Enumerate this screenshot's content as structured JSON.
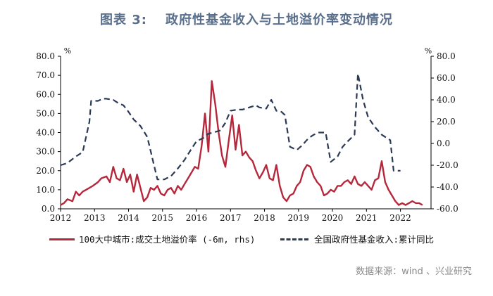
{
  "title": {
    "label": "图表 3:",
    "text": "政府性基金收入与土地溢价率变动情况"
  },
  "source": "数据来源：wind 、兴业研究",
  "colors": {
    "land_premium": "#b5283c",
    "fund_income": "#2b3a55",
    "title": "#5a6f8c"
  },
  "chart_data": {
    "type": "line",
    "left_axis": {
      "unit": "%",
      "ylim": [
        0,
        80
      ],
      "ticks": [
        "0.0",
        "10.0",
        "20.0",
        "30.0",
        "40.0",
        "50.0",
        "60.0",
        "70.0",
        "80.0"
      ]
    },
    "right_axis": {
      "unit": "%",
      "ylim": [
        -60,
        80
      ],
      "ticks": [
        "-60.0",
        "-40.0",
        "-20.0",
        "0.0",
        "20.0",
        "40.0",
        "60.0",
        "80.0"
      ]
    },
    "x_axis": {
      "range": [
        2012.0,
        2022.9
      ],
      "ticks": [
        "2012",
        "2013",
        "2014",
        "2015",
        "2016",
        "2017",
        "2018",
        "2019",
        "2020",
        "2021",
        "2022"
      ]
    },
    "grid": false,
    "legend_position": "bottom",
    "series": [
      {
        "name": "100大中城市:成交土地溢价率 (-6m, rhs)",
        "axis": "left",
        "style": "solid",
        "x": [
          2012.0,
          2012.1,
          2012.2,
          2012.35,
          2012.45,
          2012.55,
          2012.65,
          2012.75,
          2012.85,
          2012.95,
          2013.1,
          2013.2,
          2013.35,
          2013.45,
          2013.55,
          2013.65,
          2013.75,
          2013.85,
          2013.95,
          2014.05,
          2014.15,
          2014.25,
          2014.35,
          2014.45,
          2014.55,
          2014.65,
          2014.75,
          2014.85,
          2014.95,
          2015.05,
          2015.15,
          2015.25,
          2015.35,
          2015.45,
          2015.55,
          2015.65,
          2015.75,
          2015.85,
          2015.95,
          2016.05,
          2016.15,
          2016.25,
          2016.35,
          2016.45,
          2016.55,
          2016.65,
          2016.75,
          2016.85,
          2016.95,
          2017.05,
          2017.15,
          2017.25,
          2017.35,
          2017.45,
          2017.55,
          2017.65,
          2017.75,
          2017.85,
          2017.95,
          2018.05,
          2018.15,
          2018.25,
          2018.35,
          2018.45,
          2018.55,
          2018.65,
          2018.75,
          2018.85,
          2018.95,
          2019.05,
          2019.15,
          2019.25,
          2019.35,
          2019.45,
          2019.55,
          2019.65,
          2019.75,
          2019.85,
          2019.95,
          2020.05,
          2020.15,
          2020.25,
          2020.35,
          2020.45,
          2020.55,
          2020.65,
          2020.75,
          2020.85,
          2020.95,
          2021.05,
          2021.15,
          2021.25,
          2021.35,
          2021.45,
          2021.55,
          2021.65,
          2021.75,
          2021.85,
          2021.95,
          2022.05,
          2022.15,
          2022.25,
          2022.35,
          2022.45,
          2022.55,
          2022.65
        ],
        "values": [
          2,
          3,
          5,
          4,
          9,
          7,
          9,
          10,
          11,
          12,
          14,
          16,
          17,
          14,
          22,
          16,
          15,
          21,
          14,
          18,
          9,
          18,
          11,
          4,
          6,
          11,
          10,
          12,
          8,
          7,
          10,
          11,
          8,
          12,
          10,
          13,
          16,
          19,
          22,
          21,
          33,
          50,
          30,
          67,
          55,
          40,
          28,
          22,
          36,
          49,
          31,
          44,
          28,
          30,
          27,
          25,
          20,
          16,
          19,
          23,
          16,
          15,
          23,
          12,
          6,
          4,
          7,
          8,
          12,
          14,
          20,
          23,
          22,
          17,
          14,
          12,
          7,
          8,
          10,
          9,
          12,
          12,
          14,
          15,
          13,
          17,
          13,
          12,
          14,
          12,
          10,
          15,
          16,
          25,
          14,
          10,
          7,
          4,
          2,
          3,
          2,
          3,
          4,
          3,
          3,
          2
        ]
      },
      {
        "name": "全国政府性基金收入:累计同比",
        "axis": "right",
        "style": "dashed",
        "x": [
          2012.0,
          2012.2,
          2012.45,
          2012.65,
          2012.85,
          2012.9,
          2013.1,
          2013.25,
          2013.35,
          2013.55,
          2013.7,
          2013.85,
          2014.0,
          2014.15,
          2014.35,
          2014.55,
          2014.75,
          2014.85,
          2015.05,
          2015.25,
          2015.45,
          2015.65,
          2015.85,
          2016.0,
          2016.2,
          2016.35,
          2016.5,
          2016.7,
          2016.85,
          2017.0,
          2017.2,
          2017.35,
          2017.55,
          2017.75,
          2017.85,
          2018.05,
          2018.2,
          2018.35,
          2018.5,
          2018.6,
          2018.75,
          2018.95,
          2019.1,
          2019.3,
          2019.45,
          2019.6,
          2019.8,
          2019.95,
          2020.15,
          2020.3,
          2020.45,
          2020.55,
          2020.65,
          2020.75,
          2020.9,
          2021.05,
          2021.25,
          2021.45,
          2021.6,
          2021.7,
          2021.8,
          2022.0
        ],
        "values": [
          -20,
          -18,
          -12,
          -8,
          20,
          39,
          39,
          41,
          41,
          40,
          37,
          35,
          29,
          22,
          16,
          6,
          -20,
          -33,
          -33,
          -30,
          -23,
          -15,
          -5,
          2,
          5,
          9,
          10,
          12,
          19,
          30,
          31,
          31,
          33,
          35,
          33,
          32,
          40,
          30,
          29,
          26,
          -3,
          -6,
          -2,
          5,
          8,
          10,
          10,
          -17,
          -12,
          -3,
          2,
          5,
          8,
          64,
          40,
          24,
          15,
          8,
          5,
          3,
          -25,
          -25
        ]
      }
    ]
  },
  "legend": {
    "item1": "100大中城市:成交土地溢价率 (-6m, rhs)",
    "item2": "全国政府性基金收入:累计同比"
  }
}
